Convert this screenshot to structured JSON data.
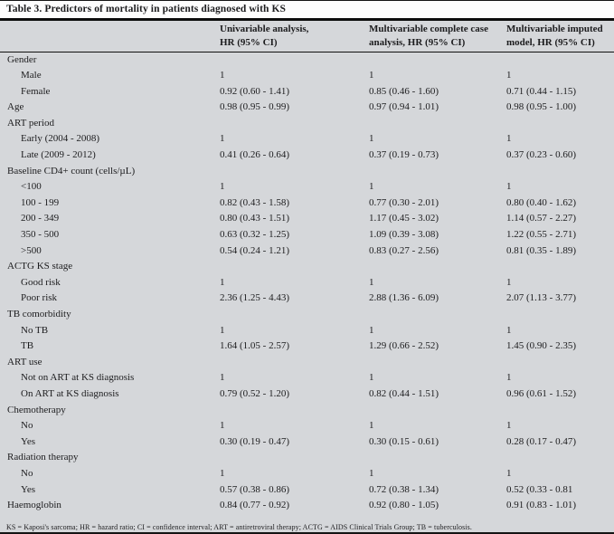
{
  "title": "Table 3. Predictors of mortality in patients diagnosed with KS",
  "columns": [
    {
      "line1": "Univariable analysis,",
      "line2": "HR (95% CI)"
    },
    {
      "line1": "Multivariable complete case",
      "line2": "analysis, HR (95% CI)"
    },
    {
      "line1": "Multivariable imputed",
      "line2": "model, HR (95% CI)"
    }
  ],
  "rows": [
    {
      "label": "Gender",
      "indent": false,
      "values": null
    },
    {
      "label": "Male",
      "indent": true,
      "values": [
        "1",
        "1",
        "1"
      ]
    },
    {
      "label": "Female",
      "indent": true,
      "values": [
        "0.92 (0.60 - 1.41)",
        "0.85 (0.46 - 1.60)",
        "0.71 (0.44 - 1.15)"
      ]
    },
    {
      "label": "Age",
      "indent": false,
      "values": [
        "0.98 (0.95 - 0.99)",
        "0.97 (0.94 - 1.01)",
        "0.98 (0.95 - 1.00)"
      ]
    },
    {
      "label": "ART period",
      "indent": false,
      "values": null
    },
    {
      "label": "Early (2004 - 2008)",
      "indent": true,
      "values": [
        "1",
        "1",
        "1"
      ]
    },
    {
      "label": "Late (2009 - 2012)",
      "indent": true,
      "values": [
        "0.41 (0.26 - 0.64)",
        "0.37 (0.19 - 0.73)",
        "0.37 (0.23 - 0.60)"
      ]
    },
    {
      "label": "Baseline CD4+ count (cells/µL)",
      "indent": false,
      "values": null
    },
    {
      "label": "<100",
      "indent": true,
      "values": [
        "1",
        "1",
        "1"
      ]
    },
    {
      "label": "100 - 199",
      "indent": true,
      "values": [
        "0.82 (0.43 - 1.58)",
        "0.77 (0.30 - 2.01)",
        "0.80 (0.40 - 1.62)"
      ]
    },
    {
      "label": "200 - 349",
      "indent": true,
      "values": [
        "0.80 (0.43 - 1.51)",
        "1.17 (0.45 - 3.02)",
        "1.14 (0.57 - 2.27)"
      ]
    },
    {
      "label": "350 - 500",
      "indent": true,
      "values": [
        "0.63 (0.32 - 1.25)",
        "1.09 (0.39 - 3.08)",
        "1.22 (0.55 - 2.71)"
      ]
    },
    {
      "label": ">500",
      "indent": true,
      "values": [
        "0.54 (0.24 - 1.21)",
        "0.83 (0.27 - 2.56)",
        "0.81 (0.35 - 1.89)"
      ]
    },
    {
      "label": "ACTG KS stage",
      "indent": false,
      "values": null
    },
    {
      "label": "Good risk",
      "indent": true,
      "values": [
        "1",
        "1",
        "1"
      ]
    },
    {
      "label": "Poor risk",
      "indent": true,
      "values": [
        "2.36 (1.25 - 4.43)",
        "2.88 (1.36 - 6.09)",
        "2.07 (1.13 - 3.77)"
      ]
    },
    {
      "label": "TB comorbidity",
      "indent": false,
      "values": null
    },
    {
      "label": "No TB",
      "indent": true,
      "values": [
        "1",
        "1",
        "1"
      ]
    },
    {
      "label": "TB",
      "indent": true,
      "values": [
        "1.64 (1.05 - 2.57)",
        "1.29 (0.66 - 2.52)",
        "1.45 (0.90 - 2.35)"
      ]
    },
    {
      "label": "ART use",
      "indent": false,
      "values": null
    },
    {
      "label": "Not on ART at KS diagnosis",
      "indent": true,
      "values": [
        "1",
        "1",
        "1"
      ]
    },
    {
      "label": "On ART at KS diagnosis",
      "indent": true,
      "values": [
        "0.79 (0.52 - 1.20)",
        "0.82 (0.44 - 1.51)",
        "0.96 (0.61 - 1.52)"
      ]
    },
    {
      "label": "Chemotherapy",
      "indent": false,
      "values": null
    },
    {
      "label": "No",
      "indent": true,
      "values": [
        "1",
        "1",
        "1"
      ]
    },
    {
      "label": "Yes",
      "indent": true,
      "values": [
        "0.30 (0.19 - 0.47)",
        "0.30 (0.15 - 0.61)",
        "0.28 (0.17 - 0.47)"
      ]
    },
    {
      "label": "Radiation therapy",
      "indent": false,
      "values": null
    },
    {
      "label": "No",
      "indent": true,
      "values": [
        "1",
        "1",
        "1"
      ]
    },
    {
      "label": "Yes",
      "indent": true,
      "values": [
        "0.57 (0.38 - 0.86)",
        "0.72 (0.38 - 1.34)",
        "0.52 (0.33 - 0.81"
      ]
    },
    {
      "label": "Haemoglobin",
      "indent": false,
      "values": [
        "0.84 (0.77 - 0.92)",
        "0.92 (0.80 - 1.05)",
        "0.91 (0.83 - 1.01)"
      ]
    }
  ],
  "footnote": "KS = Kaposi's sarcoma; HR = hazard ratio; CI = confidence interval; ART = antiretroviral therapy; ACTG = AIDS Clinical Trials Group; TB = tuberculosis.",
  "colors": {
    "shaded_background": "#d5d7da",
    "title_background": "#fdfdfd",
    "rule": "#0d0d0d",
    "text": "#1c1c1e"
  }
}
